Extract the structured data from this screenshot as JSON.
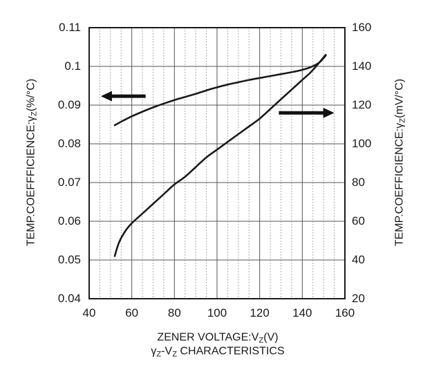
{
  "colors": {
    "background": "#ffffff",
    "text": "#1a1a1a",
    "curve": "#1a1a1a",
    "arrow": "#111111",
    "grid_major": "#555555",
    "grid_minor": "#8f8f8f",
    "border": "#1a1a1a"
  },
  "chart_data": {
    "type": "line",
    "title": "",
    "subtitle_parts": [
      {
        "t": "γ"
      },
      {
        "t": "Z",
        "sub": true
      },
      {
        "t": "-V"
      },
      {
        "t": "Z",
        "sub": true
      },
      {
        "t": " CHARACTERISTICS"
      }
    ],
    "x_axis": {
      "label_parts": [
        {
          "t": "ZENER VOLTAGE:V"
        },
        {
          "t": "Z",
          "sub": true
        },
        {
          "t": "(V)"
        }
      ],
      "min": 40,
      "max": 160,
      "major_step": 20,
      "minor_step": 5,
      "tick_labels": [
        "40",
        "60",
        "80",
        "100",
        "120",
        "140",
        "160"
      ],
      "tick_values": [
        40,
        60,
        80,
        100,
        120,
        140,
        160
      ]
    },
    "y_left": {
      "label_parts": [
        {
          "t": "TEMP.COEFFFICIENCE:γ"
        },
        {
          "t": "Z",
          "sub": true
        },
        {
          "t": "(%/°C)"
        }
      ],
      "min": 0.04,
      "max": 0.11,
      "major_step": 0.01,
      "tick_labels": [
        "0.11",
        "0.1",
        "0.09",
        "0.08",
        "0.07",
        "0.06",
        "0.05",
        "0.04"
      ],
      "tick_values": [
        0.11,
        0.1,
        0.09,
        0.08,
        0.07,
        0.06,
        0.05,
        0.04
      ]
    },
    "y_right": {
      "label_parts": [
        {
          "t": "TEMP.COEFFICIENCE:γ"
        },
        {
          "t": "Z",
          "sub": true
        },
        {
          "t": "(mV/°C)"
        }
      ],
      "min": 20,
      "max": 160,
      "major_step": 20,
      "tick_labels": [
        "160",
        "140",
        "120",
        "100",
        "80",
        "60",
        "40",
        "20"
      ],
      "tick_values": [
        160,
        140,
        120,
        100,
        80,
        60,
        40,
        20
      ]
    },
    "grid": {
      "horizontal": "major-solid",
      "vertical": "major-solid-plus-minor-dotted"
    },
    "legend": "none",
    "series": [
      {
        "name": "temp-coefficient-percent-per-degC",
        "axis": "left",
        "points": [
          [
            52,
            0.0848
          ],
          [
            56,
            0.086
          ],
          [
            60,
            0.0871
          ],
          [
            65,
            0.0883
          ],
          [
            70,
            0.0894
          ],
          [
            75,
            0.0904
          ],
          [
            80,
            0.0913
          ],
          [
            85,
            0.0921
          ],
          [
            90,
            0.0929
          ],
          [
            95,
            0.0938
          ],
          [
            100,
            0.0946
          ],
          [
            105,
            0.0953
          ],
          [
            110,
            0.0959
          ],
          [
            115,
            0.0965
          ],
          [
            120,
            0.097
          ],
          [
            125,
            0.0975
          ],
          [
            130,
            0.098
          ],
          [
            135,
            0.0985
          ],
          [
            140,
            0.0991
          ],
          [
            144,
            0.0998
          ],
          [
            148,
            0.101
          ],
          [
            151,
            0.1028
          ]
        ]
      },
      {
        "name": "temp-coefficient-mV-per-degC",
        "axis": "right",
        "points": [
          [
            52,
            42
          ],
          [
            54,
            49
          ],
          [
            57,
            55
          ],
          [
            60,
            59
          ],
          [
            65,
            64
          ],
          [
            70,
            69
          ],
          [
            75,
            74
          ],
          [
            80,
            79
          ],
          [
            85,
            83
          ],
          [
            90,
            88
          ],
          [
            95,
            93
          ],
          [
            100,
            97
          ],
          [
            105,
            101
          ],
          [
            110,
            105
          ],
          [
            115,
            109
          ],
          [
            120,
            113
          ],
          [
            125,
            118
          ],
          [
            130,
            123
          ],
          [
            135,
            128
          ],
          [
            140,
            133
          ],
          [
            144,
            137
          ],
          [
            148,
            142
          ],
          [
            151,
            146
          ]
        ]
      }
    ],
    "arrows": [
      {
        "name": "left-axis-pointer-arrow",
        "direction": "left",
        "axis": "left",
        "y": 0.0923,
        "x_from": 66.5,
        "x_to": 45.5
      },
      {
        "name": "right-axis-pointer-arrow",
        "direction": "right",
        "axis": "right",
        "y": 116,
        "x_from": 129,
        "x_to": 155
      }
    ]
  }
}
